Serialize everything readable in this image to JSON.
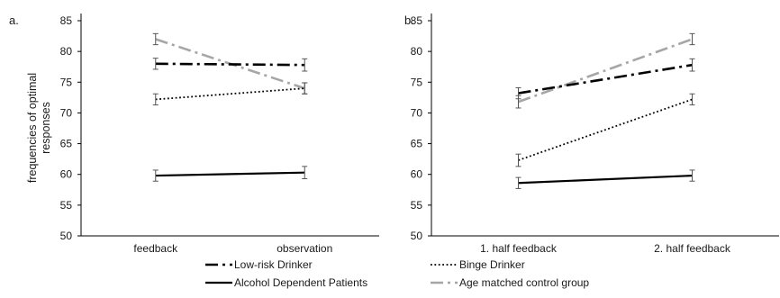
{
  "ylabel_lines": [
    "frequencies of optimal",
    "responses"
  ],
  "legend": [
    {
      "label": "Low-risk Drinker",
      "style": "dashdot",
      "color": "#000000"
    },
    {
      "label": "Binge Drinker",
      "style": "dotted",
      "color": "#000000"
    },
    {
      "label": "Alcohol Dependent Patients",
      "style": "solid",
      "color": "#000000"
    },
    {
      "label": "Age matched control group",
      "style": "dashdot-grey",
      "color": "#a6a6a6"
    }
  ],
  "chart_data": [
    {
      "type": "line",
      "panel_label": "a.",
      "categories": [
        "feedback",
        "observation"
      ],
      "ylim": [
        50,
        85
      ],
      "yticks": [
        "50",
        "55",
        "60",
        "65",
        "70",
        "75",
        "80",
        "85"
      ],
      "series": [
        {
          "name": "Age matched control group",
          "values": [
            82.0,
            74.0
          ],
          "errors": [
            0.9,
            0.9
          ]
        },
        {
          "name": "Low-risk Drinker",
          "values": [
            78.0,
            77.8
          ],
          "errors": [
            0.9,
            1.0
          ]
        },
        {
          "name": "Binge Drinker",
          "values": [
            72.2,
            74.0
          ],
          "errors": [
            0.9,
            0.9
          ]
        },
        {
          "name": "Alcohol Dependent Patients",
          "values": [
            59.8,
            60.3
          ],
          "errors": [
            0.9,
            1.0
          ]
        }
      ]
    },
    {
      "type": "line",
      "panel_label": "b.",
      "categories": [
        "1. half feedback",
        "2. half feedback"
      ],
      "ylim": [
        50,
        85
      ],
      "yticks": [
        "50",
        "55",
        "60",
        "65",
        "70",
        "75",
        "80",
        "85"
      ],
      "series": [
        {
          "name": "Age matched control group",
          "values": [
            71.8,
            82.0
          ],
          "errors": [
            1.0,
            0.9
          ]
        },
        {
          "name": "Low-risk Drinker",
          "values": [
            73.2,
            77.8
          ],
          "errors": [
            0.9,
            1.0
          ]
        },
        {
          "name": "Binge Drinker",
          "values": [
            62.3,
            72.2
          ],
          "errors": [
            1.0,
            0.9
          ]
        },
        {
          "name": "Alcohol Dependent Patients",
          "values": [
            58.6,
            59.8
          ],
          "errors": [
            0.9,
            0.9
          ]
        }
      ]
    }
  ]
}
